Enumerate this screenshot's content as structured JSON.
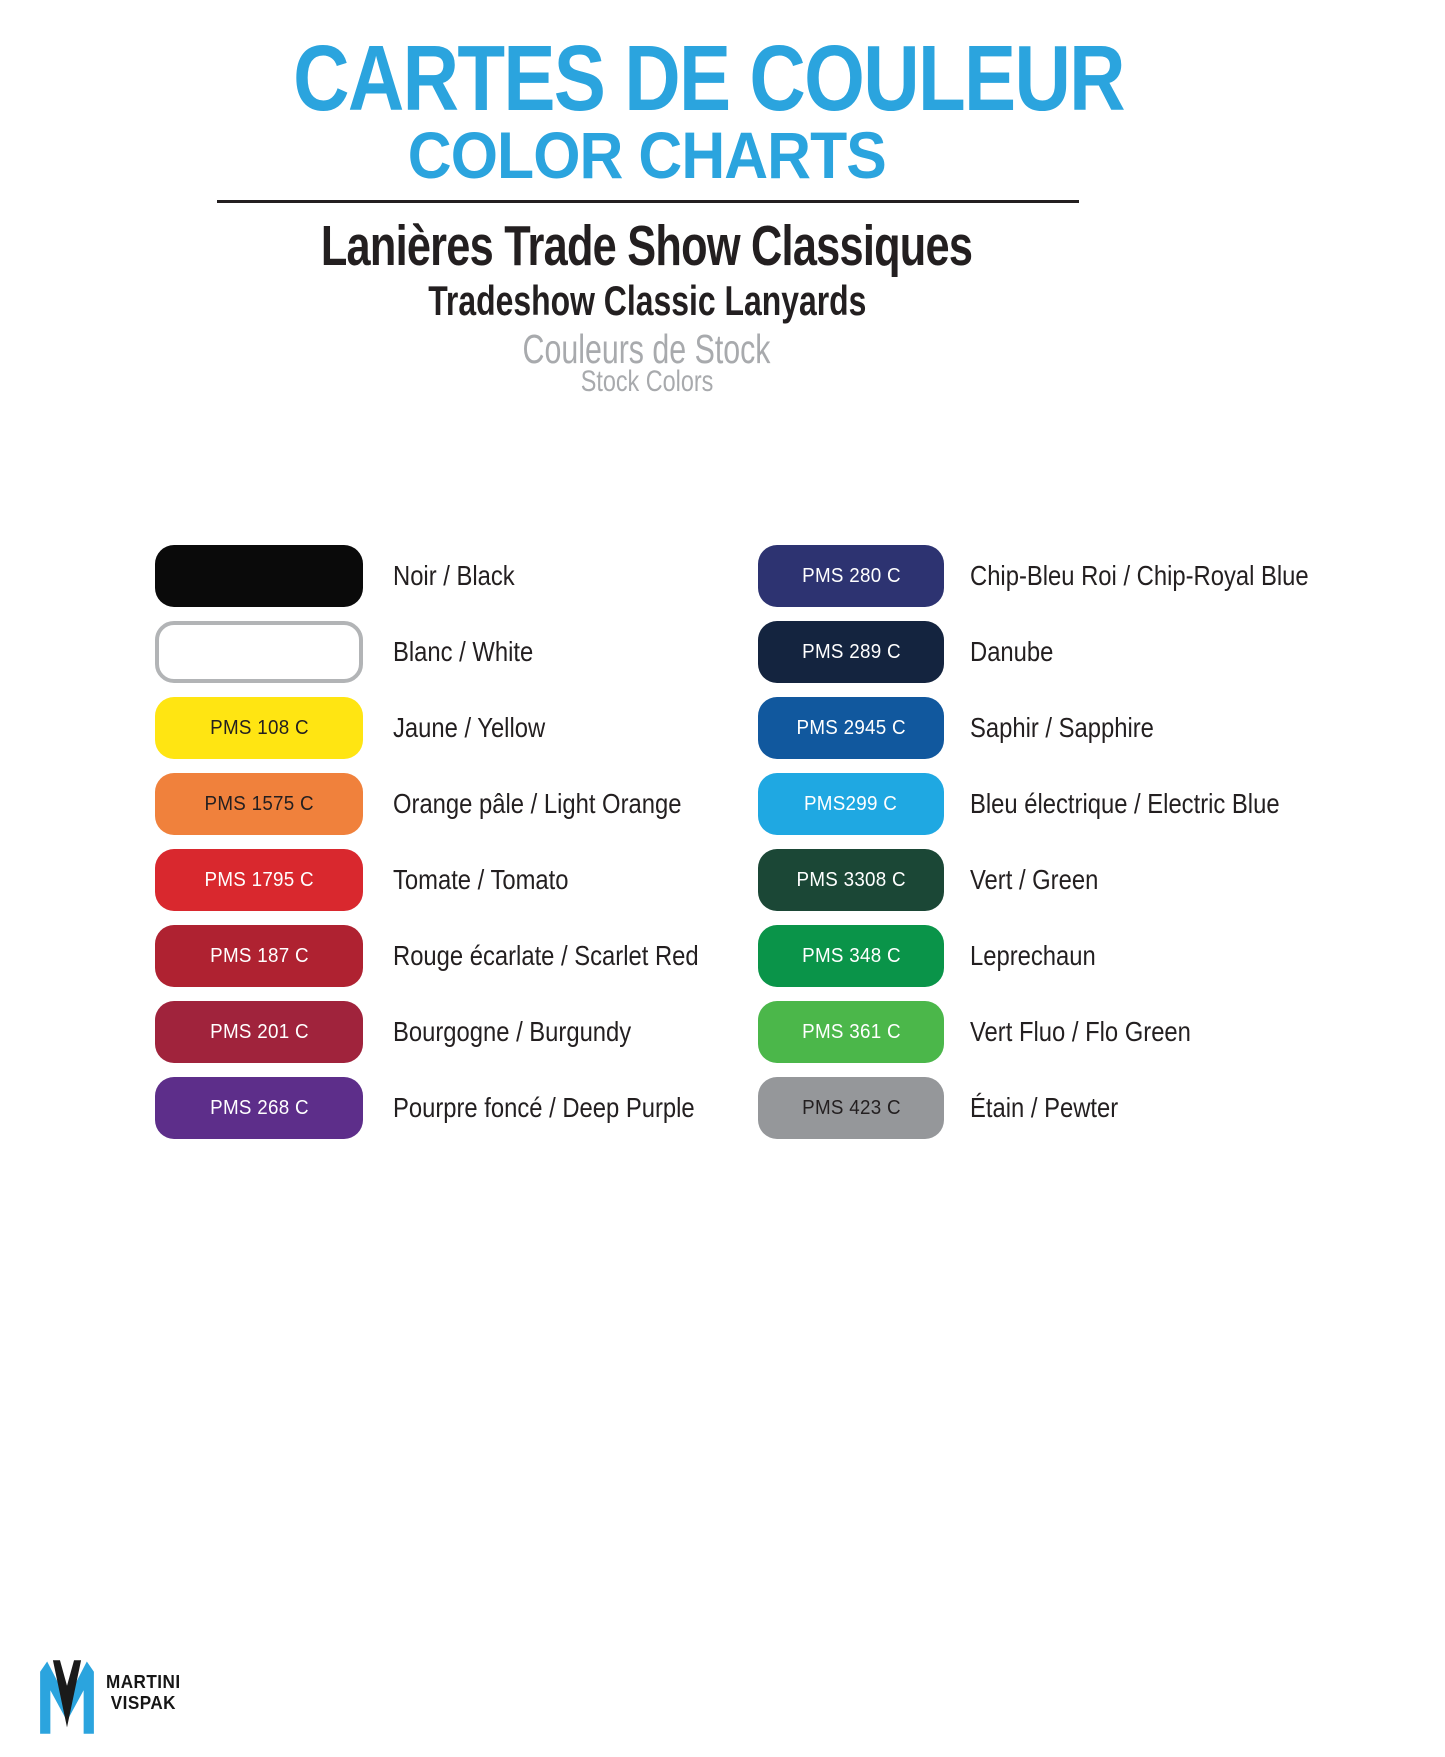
{
  "header": {
    "title_line1": "CARTES DE COULEUR",
    "title_line2": "COLOR CHARTS",
    "product_title_fr": "Lanières Trade Show Classiques",
    "product_title_en": "Tradeshow Classic Lanyards",
    "section_title_fr": "Couleurs de Stock",
    "section_title_en": "Stock Colors"
  },
  "colors": {
    "accent_blue": "#2BA4DE",
    "heading_black": "#231F20",
    "muted_gray": "#A8AAAD",
    "white_swatch_border": "#B2B4B6"
  },
  "swatch_columns": [
    {
      "rows": [
        {
          "pms": "",
          "name": "Noir / Black",
          "fill": "#0A0A0A",
          "text_color": "#FFFFFF"
        },
        {
          "pms": "",
          "name": "Blanc / White",
          "fill": "#FFFFFF",
          "text_color": "#231F20",
          "border": "#B2B4B6"
        },
        {
          "pms": "PMS 108 C",
          "name": "Jaune / Yellow",
          "fill": "#FFE512",
          "text_color": "#231F20"
        },
        {
          "pms": "PMS 1575 C",
          "name": "Orange pâle / Light Orange",
          "fill": "#F0813C",
          "text_color": "#231F20"
        },
        {
          "pms": "PMS 1795 C",
          "name": "Tomate / Tomato",
          "fill": "#D9282E",
          "text_color": "#FFFFFF"
        },
        {
          "pms": "PMS 187 C",
          "name": "Rouge écarlate / Scarlet Red",
          "fill": "#AF2231",
          "text_color": "#FFFFFF"
        },
        {
          "pms": "PMS 201 C",
          "name": "Bourgogne / Burgundy",
          "fill": "#A0233C",
          "text_color": "#FFFFFF"
        },
        {
          "pms": "PMS 268 C",
          "name": "Pourpre foncé / Deep Purple",
          "fill": "#5D2E8A",
          "text_color": "#FFFFFF"
        }
      ]
    },
    {
      "rows": [
        {
          "pms": "PMS 280 C",
          "name": "Chip-Bleu Roi / Chip-Royal Blue",
          "fill": "#2D3371",
          "text_color": "#FFFFFF"
        },
        {
          "pms": "PMS 289 C",
          "name": "Danube",
          "fill": "#14243F",
          "text_color": "#FFFFFF"
        },
        {
          "pms": "PMS 2945 C",
          "name": "Saphir / Sapphire",
          "fill": "#11589E",
          "text_color": "#FFFFFF"
        },
        {
          "pms": "PMS299 C",
          "name": "Bleu électrique / Electric Blue",
          "fill": "#1FA8E2",
          "text_color": "#FFFFFF"
        },
        {
          "pms": "PMS 3308 C",
          "name": "Vert / Green",
          "fill": "#1B4736",
          "text_color": "#FFFFFF"
        },
        {
          "pms": "PMS 348 C",
          "name": "Leprechaun",
          "fill": "#0A9449",
          "text_color": "#FFFFFF"
        },
        {
          "pms": "PMS 361 C",
          "name": "Vert Fluo / Flo Green",
          "fill": "#4BB74A",
          "text_color": "#FFFFFF"
        },
        {
          "pms": "PMS 423 C",
          "name": "Étain / Pewter",
          "fill": "#95979A",
          "text_color": "#231F20"
        }
      ]
    },
    {
      "note": ""
    }
  ],
  "footer": {
    "brand_line1": "MARTINI",
    "brand_line2": "VISPAK",
    "logo_blue": "#2BA4DE",
    "logo_black": "#1A1A1A"
  }
}
